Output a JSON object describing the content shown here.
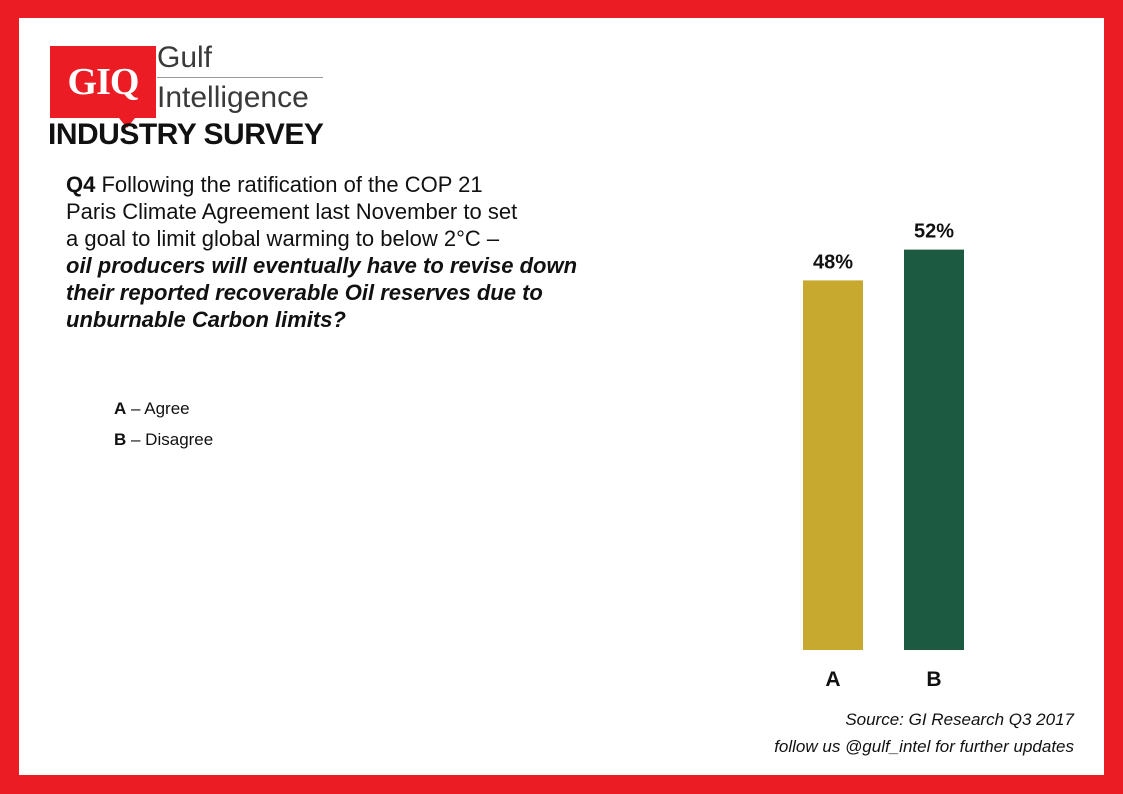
{
  "logo": {
    "text": "GIQ"
  },
  "brand": {
    "line1": "Gulf",
    "line2": "Intelligence"
  },
  "survey_title": "INDUSTRY SURVEY",
  "question": {
    "number": "Q4",
    "text_line1": " Following the ratification of the COP 21",
    "text_line2": "Paris Climate Agreement last November to set",
    "text_line3": "a goal to limit global warming to below 2°C –",
    "bold_line1": "oil producers will eventually have to revise down",
    "bold_line2": "their reported recoverable Oil reserves due to",
    "bold_line3": "unburnable Carbon limits?"
  },
  "options": [
    {
      "letter": "A",
      "label": " – Agree"
    },
    {
      "letter": "B",
      "label": " – Disagree"
    }
  ],
  "colors": {
    "border": "#ec1c24",
    "bar_a": "#c8a92f",
    "bar_b": "#1c5a41"
  },
  "chart_data": {
    "type": "bar",
    "categories": [
      "A",
      "B"
    ],
    "values": [
      48,
      52
    ],
    "data_labels": [
      "48%",
      "52%"
    ],
    "ylim": [
      0,
      100
    ],
    "grid": false,
    "title": "",
    "xlabel": "",
    "ylabel": ""
  },
  "footer": {
    "source": "Source: GI Research Q3 2017",
    "follow": "follow us @gulf_intel for further updates"
  }
}
